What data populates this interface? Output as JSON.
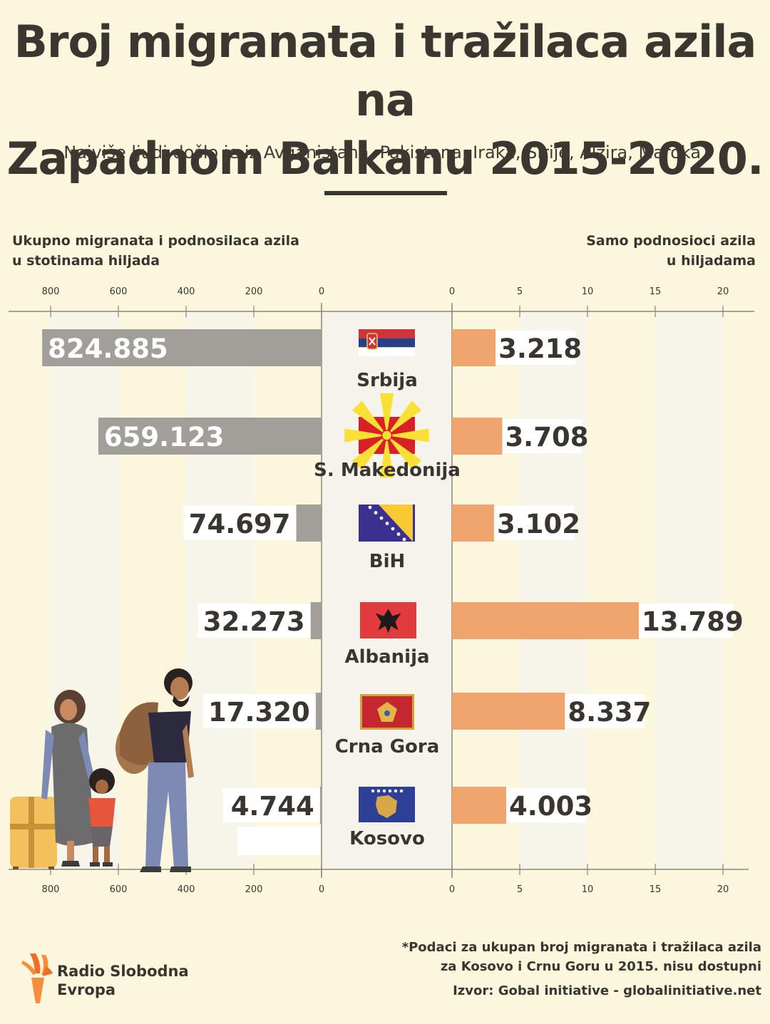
{
  "title_line1": "Broj migranata i tražilaca azila na",
  "title_line2": "Zapadnom Balkanu 2015-2020.",
  "subtitle": "Najviše ljudi došlo je iz Avganistana, Pakistana, Iraka, Sirije, Alžira, Maroka.",
  "left_axis_title": [
    "Ukupno migranata i podnosilaca azila",
    "u stotinama hiljada"
  ],
  "right_axis_title": [
    "Samo podnosioci azila",
    "u hiljadama"
  ],
  "note": [
    "*Podaci za ukupan broj migranata i tražilaca azila",
    "za Kosovo i Crnu Goru u 2015. nisu dostupni"
  ],
  "source": "Izvor: Gobal initiative - globalinitiative.net",
  "logo": {
    "line1": "Radio Slobodna",
    "line2": "Evropa"
  },
  "colors": {
    "background": "#fbf7dd",
    "left_bar": "#a29e99",
    "right_bar": "#f0a56c",
    "band": "#f7f4ea",
    "text": "#3a3530"
  },
  "chart_data": {
    "type": "bar",
    "orientation": "horizontal-butterfly",
    "categories": [
      "Srbija",
      "S. Makedonija",
      "BiH",
      "Albanija",
      "Crna Gora",
      "Kosovo"
    ],
    "series": [
      {
        "name": "Ukupno migranata i podnosilaca azila",
        "values": [
          824885,
          659123,
          74697,
          32273,
          17320,
          4744
        ],
        "labels": [
          "824.885",
          "659.123",
          "74.697",
          "32.273",
          "17.320",
          "4.744"
        ],
        "axis_ticks": [
          "800",
          "600",
          "400",
          "200",
          "0"
        ],
        "axis_range": [
          0,
          900000
        ]
      },
      {
        "name": "Samo podnosioci azila",
        "values": [
          3218,
          3708,
          3102,
          13789,
          8337,
          4003
        ],
        "labels": [
          "3.218",
          "3.708",
          "3.102",
          "13.789",
          "8.337",
          "4.003"
        ],
        "axis_ticks": [
          "0",
          "5",
          "10",
          "15",
          "20"
        ],
        "axis_range": [
          0,
          22000
        ]
      }
    ],
    "flags": [
      "serbia-flag-icon",
      "north-macedonia-flag-icon",
      "bosnia-flag-icon",
      "albania-flag-icon",
      "montenegro-flag-icon",
      "kosovo-flag-icon"
    ],
    "grid": true
  }
}
